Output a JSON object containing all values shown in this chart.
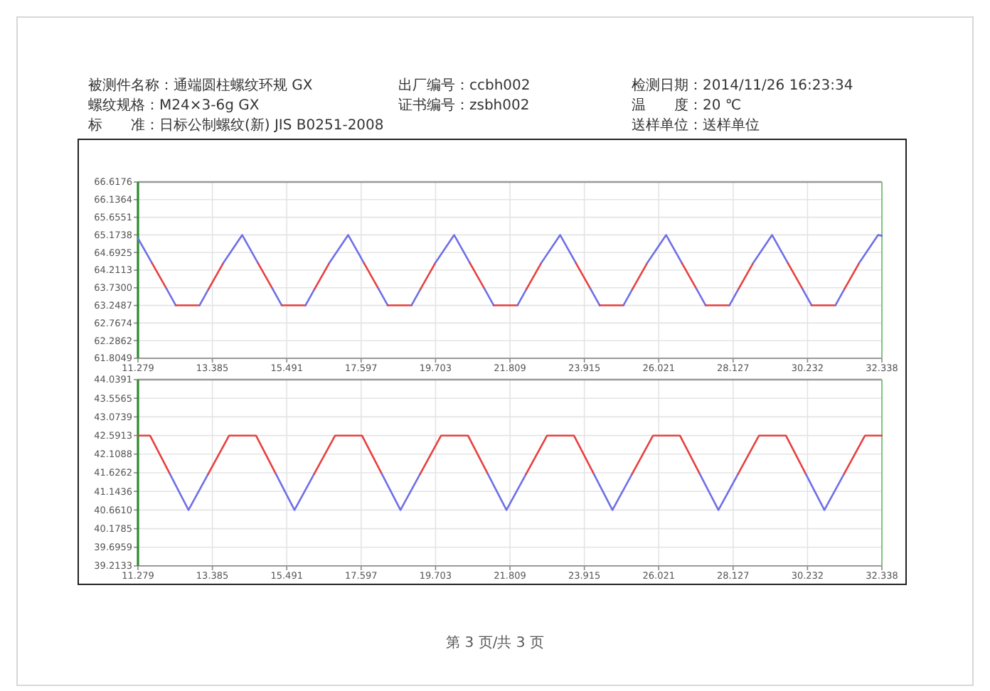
{
  "chart_data": [
    {
      "type": "other",
      "annotations": [
        "被测件名称：通端圆柱螺纹环规 GX",
        "出厂编号：ccbh002",
        "检测日期：2014/11/26 16:23:34",
        "螺纹规格：M24×3-6g GX",
        "证书编号：zsbh002",
        "温　　度：20 ℃",
        "标　　准：日标公制螺纹(新) JIS B0251-2008",
        "送样单位：送样单位"
      ]
    },
    {
      "type": "line",
      "grid": true,
      "marker": "none",
      "line_style": "solid",
      "xlim": [
        11.279,
        32.338
      ],
      "xticks": [
        11.279,
        13.385,
        15.491,
        17.597,
        19.703,
        21.809,
        23.915,
        26.021,
        28.127,
        30.232,
        32.338
      ],
      "ylim": [
        61.8049,
        66.6176
      ],
      "yticks": [
        {
          "value": 61.8049,
          "label": "61.8049"
        },
        {
          "value": 62.2862,
          "label": "62.2862"
        },
        {
          "value": 62.7674,
          "label": "62.7674"
        },
        {
          "value": 63.2487,
          "label": "63.2487"
        },
        {
          "value": 63.73,
          "label": "63.7300"
        },
        {
          "value": 64.2113,
          "label": "64.2113"
        },
        {
          "value": 64.6925,
          "label": "64.6925"
        },
        {
          "value": 65.1738,
          "label": "65.1738"
        },
        {
          "value": 65.6551,
          "label": "65.6551"
        },
        {
          "value": 66.1364,
          "label": "66.1364"
        },
        {
          "value": 66.6176,
          "label": "66.6176"
        }
      ],
      "series": [
        {
          "color": "#6f6fe8",
          "x": [
            11.279,
            11.68
          ],
          "values": [
            65.08,
            64.4
          ]
        },
        {
          "color": "#e84040",
          "x": [
            11.68,
            12.09
          ],
          "values": [
            64.4,
            63.7
          ]
        },
        {
          "color": "#6f6fe8",
          "x": [
            12.09,
            12.35
          ],
          "values": [
            63.7,
            63.25
          ]
        },
        {
          "color": "#e84040",
          "x": [
            12.35,
            13.02
          ],
          "values": [
            63.25,
            63.25
          ]
        },
        {
          "color": "#6f6fe8",
          "x": [
            13.02,
            13.28
          ],
          "values": [
            63.25,
            63.7
          ]
        },
        {
          "color": "#e84040",
          "x": [
            13.28,
            13.69
          ],
          "values": [
            63.7,
            64.4
          ]
        },
        {
          "color": "#6f6fe8",
          "x": [
            13.69,
            14.23,
            14.68
          ],
          "values": [
            64.4,
            65.17,
            64.4
          ]
        },
        {
          "color": "#e84040",
          "x": [
            14.68,
            15.09
          ],
          "values": [
            64.4,
            63.7
          ]
        },
        {
          "color": "#6f6fe8",
          "x": [
            15.09,
            15.35
          ],
          "values": [
            63.7,
            63.25
          ]
        },
        {
          "color": "#e84040",
          "x": [
            15.35,
            16.02
          ],
          "values": [
            63.25,
            63.25
          ]
        },
        {
          "color": "#6f6fe8",
          "x": [
            16.02,
            16.28
          ],
          "values": [
            63.25,
            63.7
          ]
        },
        {
          "color": "#e84040",
          "x": [
            16.28,
            16.69
          ],
          "values": [
            63.7,
            64.4
          ]
        },
        {
          "color": "#6f6fe8",
          "x": [
            16.69,
            17.23,
            17.68
          ],
          "values": [
            64.4,
            65.17,
            64.4
          ]
        },
        {
          "color": "#e84040",
          "x": [
            17.68,
            18.09
          ],
          "values": [
            64.4,
            63.7
          ]
        },
        {
          "color": "#6f6fe8",
          "x": [
            18.09,
            18.35
          ],
          "values": [
            63.7,
            63.25
          ]
        },
        {
          "color": "#e84040",
          "x": [
            18.35,
            19.02
          ],
          "values": [
            63.25,
            63.25
          ]
        },
        {
          "color": "#6f6fe8",
          "x": [
            19.02,
            19.28
          ],
          "values": [
            63.25,
            63.7
          ]
        },
        {
          "color": "#e84040",
          "x": [
            19.28,
            19.69
          ],
          "values": [
            63.7,
            64.4
          ]
        },
        {
          "color": "#6f6fe8",
          "x": [
            19.69,
            20.23,
            20.68
          ],
          "values": [
            64.4,
            65.17,
            64.4
          ]
        },
        {
          "color": "#e84040",
          "x": [
            20.68,
            21.09
          ],
          "values": [
            64.4,
            63.7
          ]
        },
        {
          "color": "#6f6fe8",
          "x": [
            21.09,
            21.35
          ],
          "values": [
            63.7,
            63.25
          ]
        },
        {
          "color": "#e84040",
          "x": [
            21.35,
            22.02
          ],
          "values": [
            63.25,
            63.25
          ]
        },
        {
          "color": "#6f6fe8",
          "x": [
            22.02,
            22.28
          ],
          "values": [
            63.25,
            63.7
          ]
        },
        {
          "color": "#e84040",
          "x": [
            22.28,
            22.69
          ],
          "values": [
            63.7,
            64.4
          ]
        },
        {
          "color": "#6f6fe8",
          "x": [
            22.69,
            23.23,
            23.68
          ],
          "values": [
            64.4,
            65.17,
            64.4
          ]
        },
        {
          "color": "#e84040",
          "x": [
            23.68,
            24.09
          ],
          "values": [
            64.4,
            63.7
          ]
        },
        {
          "color": "#6f6fe8",
          "x": [
            24.09,
            24.35
          ],
          "values": [
            63.7,
            63.25
          ]
        },
        {
          "color": "#e84040",
          "x": [
            24.35,
            25.02
          ],
          "values": [
            63.25,
            63.25
          ]
        },
        {
          "color": "#6f6fe8",
          "x": [
            25.02,
            25.28
          ],
          "values": [
            63.25,
            63.7
          ]
        },
        {
          "color": "#e84040",
          "x": [
            25.28,
            25.69
          ],
          "values": [
            63.7,
            64.4
          ]
        },
        {
          "color": "#6f6fe8",
          "x": [
            25.69,
            26.23,
            26.68
          ],
          "values": [
            64.4,
            65.17,
            64.4
          ]
        },
        {
          "color": "#e84040",
          "x": [
            26.68,
            27.09
          ],
          "values": [
            64.4,
            63.7
          ]
        },
        {
          "color": "#6f6fe8",
          "x": [
            27.09,
            27.35
          ],
          "values": [
            63.7,
            63.25
          ]
        },
        {
          "color": "#e84040",
          "x": [
            27.35,
            28.02
          ],
          "values": [
            63.25,
            63.25
          ]
        },
        {
          "color": "#6f6fe8",
          "x": [
            28.02,
            28.28
          ],
          "values": [
            63.25,
            63.7
          ]
        },
        {
          "color": "#e84040",
          "x": [
            28.28,
            28.69
          ],
          "values": [
            63.7,
            64.4
          ]
        },
        {
          "color": "#6f6fe8",
          "x": [
            28.69,
            29.23,
            29.68
          ],
          "values": [
            64.4,
            65.17,
            64.4
          ]
        },
        {
          "color": "#e84040",
          "x": [
            29.68,
            30.09
          ],
          "values": [
            64.4,
            63.7
          ]
        },
        {
          "color": "#6f6fe8",
          "x": [
            30.09,
            30.35
          ],
          "values": [
            63.7,
            63.25
          ]
        },
        {
          "color": "#e84040",
          "x": [
            30.35,
            31.02
          ],
          "values": [
            63.25,
            63.25
          ]
        },
        {
          "color": "#6f6fe8",
          "x": [
            31.02,
            31.28
          ],
          "values": [
            63.25,
            63.7
          ]
        },
        {
          "color": "#e84040",
          "x": [
            31.28,
            31.69
          ],
          "values": [
            63.7,
            64.4
          ]
        },
        {
          "color": "#6f6fe8",
          "x": [
            31.69,
            32.23,
            32.338
          ],
          "values": [
            64.4,
            65.17,
            65.15
          ]
        }
      ]
    },
    {
      "type": "line",
      "grid": true,
      "marker": "none",
      "line_style": "solid",
      "xlim": [
        11.279,
        32.338
      ],
      "xticks": [
        11.279,
        13.385,
        15.491,
        17.597,
        19.703,
        21.809,
        23.915,
        26.021,
        28.127,
        30.232,
        32.338
      ],
      "ylim": [
        39.2133,
        44.0391
      ],
      "yticks": [
        {
          "value": 39.2133,
          "label": "39.2133"
        },
        {
          "value": 39.6959,
          "label": "39.6959"
        },
        {
          "value": 40.1785,
          "label": "40.1785"
        },
        {
          "value": 40.661,
          "label": "40.6610"
        },
        {
          "value": 41.1436,
          "label": "41.1436"
        },
        {
          "value": 41.6262,
          "label": "41.6262"
        },
        {
          "value": 42.1088,
          "label": "42.1088"
        },
        {
          "value": 42.5913,
          "label": "42.5913"
        },
        {
          "value": 43.0739,
          "label": "43.0739"
        },
        {
          "value": 43.5565,
          "label": "43.5565"
        },
        {
          "value": 44.0391,
          "label": "44.0391"
        }
      ],
      "annotations": [
        "第 3 页/共 3 页"
      ],
      "series": [
        {
          "color": "#e84040",
          "x": [
            11.279,
            11.62,
            12.18
          ],
          "values": [
            42.59,
            42.59,
            41.6
          ]
        },
        {
          "color": "#6f6fe8",
          "x": [
            12.18,
            12.71,
            13.27
          ],
          "values": [
            41.6,
            40.66,
            41.6
          ]
        },
        {
          "color": "#e84040",
          "x": [
            13.27,
            13.86,
            14.62,
            15.18
          ],
          "values": [
            41.6,
            42.59,
            42.59,
            41.6
          ]
        },
        {
          "color": "#6f6fe8",
          "x": [
            15.18,
            15.71,
            16.27
          ],
          "values": [
            41.6,
            40.66,
            41.6
          ]
        },
        {
          "color": "#e84040",
          "x": [
            16.27,
            16.86,
            17.62,
            18.18
          ],
          "values": [
            41.6,
            42.59,
            42.59,
            41.6
          ]
        },
        {
          "color": "#6f6fe8",
          "x": [
            18.18,
            18.71,
            19.27
          ],
          "values": [
            41.6,
            40.66,
            41.6
          ]
        },
        {
          "color": "#e84040",
          "x": [
            19.27,
            19.86,
            20.62,
            21.18
          ],
          "values": [
            41.6,
            42.59,
            42.59,
            41.6
          ]
        },
        {
          "color": "#6f6fe8",
          "x": [
            21.18,
            21.71,
            22.27
          ],
          "values": [
            41.6,
            40.66,
            41.6
          ]
        },
        {
          "color": "#e84040",
          "x": [
            22.27,
            22.86,
            23.62,
            24.18
          ],
          "values": [
            41.6,
            42.59,
            42.59,
            41.6
          ]
        },
        {
          "color": "#6f6fe8",
          "x": [
            24.18,
            24.71,
            25.27
          ],
          "values": [
            41.6,
            40.66,
            41.6
          ]
        },
        {
          "color": "#e84040",
          "x": [
            25.27,
            25.86,
            26.62,
            27.18
          ],
          "values": [
            41.6,
            42.59,
            42.59,
            41.6
          ]
        },
        {
          "color": "#6f6fe8",
          "x": [
            27.18,
            27.71,
            28.27
          ],
          "values": [
            41.6,
            40.66,
            41.6
          ]
        },
        {
          "color": "#e84040",
          "x": [
            28.27,
            28.86,
            29.62,
            30.18
          ],
          "values": [
            41.6,
            42.59,
            42.59,
            41.6
          ]
        },
        {
          "color": "#6f6fe8",
          "x": [
            30.18,
            30.71,
            31.27
          ],
          "values": [
            41.6,
            40.66,
            41.6
          ]
        },
        {
          "color": "#e84040",
          "x": [
            31.27,
            31.86,
            32.338
          ],
          "values": [
            41.6,
            42.59,
            42.59
          ]
        }
      ]
    }
  ]
}
